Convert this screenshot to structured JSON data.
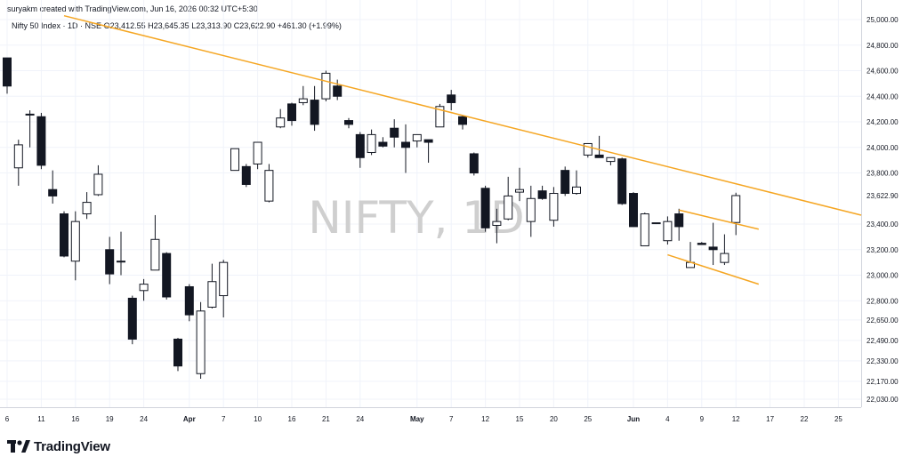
{
  "header": {
    "credit": "suryakm created with TradingView.com, Jun 16, 2026 00:32 UTC+5:30",
    "symbol_line": "Nifty 50 Index · 1D · NSE",
    "open": "O23,412.55",
    "high": "H23,645.35",
    "low": "L23,313.90",
    "close": "C23,622.90",
    "change": "+461.30 (+1.99%)"
  },
  "watermark": "NIFTY, 1D",
  "brand": {
    "name": "TradingView",
    "icon": "tradingview-logo-icon"
  },
  "colors": {
    "up_fill": "#ffffff",
    "down_fill": "#131722",
    "wick": "#131722",
    "trendline": "#f5a623",
    "grid": "#f0f3fa",
    "axis_text": "#131722"
  },
  "chart_data": {
    "type": "candlestick",
    "title": "",
    "xlabel": "",
    "ylabel": "",
    "ylim": [
      21950,
      25050
    ],
    "y_tick_labels": [
      "25,000.00",
      "24,800.00",
      "24,600.00",
      "24,400.00",
      "24,200.00",
      "24,000.00",
      "23,800.00",
      "23,622.90",
      "23,400.00",
      "23,200.00",
      "23,000.00",
      "22,800.00",
      "22,650.00",
      "22,490.00",
      "22,330.00",
      "22,170.00",
      "22,030.00"
    ],
    "x_tick_labels": [
      {
        "label": "6",
        "slot": 0
      },
      {
        "label": "11",
        "slot": 3
      },
      {
        "label": "16",
        "slot": 6
      },
      {
        "label": "19",
        "slot": 9
      },
      {
        "label": "24",
        "slot": 12
      },
      {
        "label": "Apr",
        "slot": 16,
        "bold": true
      },
      {
        "label": "7",
        "slot": 19
      },
      {
        "label": "10",
        "slot": 22
      },
      {
        "label": "16",
        "slot": 25
      },
      {
        "label": "21",
        "slot": 28
      },
      {
        "label": "24",
        "slot": 31
      },
      {
        "label": "May",
        "slot": 36,
        "bold": true
      },
      {
        "label": "7",
        "slot": 39
      },
      {
        "label": "12",
        "slot": 42
      },
      {
        "label": "15",
        "slot": 45
      },
      {
        "label": "20",
        "slot": 48
      },
      {
        "label": "25",
        "slot": 51
      },
      {
        "label": "Jun",
        "slot": 55,
        "bold": true
      },
      {
        "label": "4",
        "slot": 58
      },
      {
        "label": "9",
        "slot": 61
      },
      {
        "label": "12",
        "slot": 64
      },
      {
        "label": "17",
        "slot": 67
      },
      {
        "label": "22",
        "slot": 70
      },
      {
        "label": "25",
        "slot": 73
      }
    ],
    "last_price": 23622.9,
    "candles": [
      {
        "s": 0,
        "o": 24700,
        "h": 24700,
        "l": 24420,
        "c": 24480
      },
      {
        "s": 1,
        "o": 23840,
        "h": 24060,
        "l": 23700,
        "c": 24020
      },
      {
        "s": 2,
        "o": 24260,
        "h": 24290,
        "l": 24000,
        "c": 24260
      },
      {
        "s": 3,
        "o": 24240,
        "h": 24270,
        "l": 23830,
        "c": 23860
      },
      {
        "s": 4,
        "o": 23670,
        "h": 23820,
        "l": 23560,
        "c": 23620
      },
      {
        "s": 5,
        "o": 23480,
        "h": 23500,
        "l": 23140,
        "c": 23150
      },
      {
        "s": 6,
        "o": 23110,
        "h": 23500,
        "l": 22960,
        "c": 23420
      },
      {
        "s": 7,
        "o": 23480,
        "h": 23650,
        "l": 23440,
        "c": 23570
      },
      {
        "s": 8,
        "o": 23630,
        "h": 23860,
        "l": 23620,
        "c": 23790
      },
      {
        "s": 9,
        "o": 23200,
        "h": 23300,
        "l": 22930,
        "c": 23010
      },
      {
        "s": 10,
        "o": 23110,
        "h": 23340,
        "l": 23000,
        "c": 23110
      },
      {
        "s": 11,
        "o": 22820,
        "h": 22840,
        "l": 22460,
        "c": 22500
      },
      {
        "s": 12,
        "o": 22880,
        "h": 22970,
        "l": 22800,
        "c": 22930
      },
      {
        "s": 13,
        "o": 23040,
        "h": 23470,
        "l": 23040,
        "c": 23280
      },
      {
        "s": 14,
        "o": 23170,
        "h": 23180,
        "l": 22810,
        "c": 22830
      },
      {
        "s": 15,
        "o": 22500,
        "h": 22510,
        "l": 22250,
        "c": 22290
      },
      {
        "s": 16,
        "o": 22910,
        "h": 22930,
        "l": 22640,
        "c": 22690
      },
      {
        "s": 17,
        "o": 22230,
        "h": 22790,
        "l": 22190,
        "c": 22720
      },
      {
        "s": 18,
        "o": 22750,
        "h": 23090,
        "l": 22740,
        "c": 22950
      },
      {
        "s": 19,
        "o": 22840,
        "h": 23120,
        "l": 22670,
        "c": 23100
      },
      {
        "s": 20,
        "o": 23820,
        "h": 23990,
        "l": 23820,
        "c": 23990
      },
      {
        "s": 21,
        "o": 23850,
        "h": 23870,
        "l": 23690,
        "c": 23710
      },
      {
        "s": 22,
        "o": 23870,
        "h": 24040,
        "l": 23830,
        "c": 24040
      },
      {
        "s": 23,
        "o": 23580,
        "h": 23870,
        "l": 23570,
        "c": 23820
      },
      {
        "s": 24,
        "o": 24160,
        "h": 24300,
        "l": 24150,
        "c": 24230
      },
      {
        "s": 25,
        "o": 24340,
        "h": 24350,
        "l": 24170,
        "c": 24210
      },
      {
        "s": 26,
        "o": 24350,
        "h": 24480,
        "l": 24330,
        "c": 24380
      },
      {
        "s": 27,
        "o": 24370,
        "h": 24480,
        "l": 24130,
        "c": 24180
      },
      {
        "s": 28,
        "o": 24380,
        "h": 24600,
        "l": 24360,
        "c": 24580
      },
      {
        "s": 29,
        "o": 24480,
        "h": 24530,
        "l": 24370,
        "c": 24400
      },
      {
        "s": 30,
        "o": 24210,
        "h": 24230,
        "l": 24150,
        "c": 24180
      },
      {
        "s": 31,
        "o": 24100,
        "h": 24120,
        "l": 23840,
        "c": 23920
      },
      {
        "s": 32,
        "o": 23960,
        "h": 24140,
        "l": 23940,
        "c": 24100
      },
      {
        "s": 33,
        "o": 24040,
        "h": 24080,
        "l": 24000,
        "c": 24010
      },
      {
        "s": 34,
        "o": 24150,
        "h": 24220,
        "l": 24000,
        "c": 24080
      },
      {
        "s": 35,
        "o": 24040,
        "h": 24180,
        "l": 23800,
        "c": 24000
      },
      {
        "s": 36,
        "o": 24050,
        "h": 24080,
        "l": 24000,
        "c": 24100
      },
      {
        "s": 37,
        "o": 24060,
        "h": 24060,
        "l": 23880,
        "c": 24040
      },
      {
        "s": 38,
        "o": 24160,
        "h": 24340,
        "l": 24160,
        "c": 24320
      },
      {
        "s": 39,
        "o": 24410,
        "h": 24450,
        "l": 24290,
        "c": 24350
      },
      {
        "s": 40,
        "o": 24240,
        "h": 24250,
        "l": 24140,
        "c": 24180
      },
      {
        "s": 41,
        "o": 23950,
        "h": 23960,
        "l": 23780,
        "c": 23800
      },
      {
        "s": 42,
        "o": 23680,
        "h": 23700,
        "l": 23340,
        "c": 23370
      },
      {
        "s": 43,
        "o": 23390,
        "h": 23520,
        "l": 23250,
        "c": 23420
      },
      {
        "s": 44,
        "o": 23440,
        "h": 23770,
        "l": 23430,
        "c": 23620
      },
      {
        "s": 45,
        "o": 23650,
        "h": 23840,
        "l": 23580,
        "c": 23670
      },
      {
        "s": 46,
        "o": 23420,
        "h": 23700,
        "l": 23300,
        "c": 23600
      },
      {
        "s": 47,
        "o": 23660,
        "h": 23700,
        "l": 23590,
        "c": 23600
      },
      {
        "s": 48,
        "o": 23430,
        "h": 23690,
        "l": 23380,
        "c": 23640
      },
      {
        "s": 49,
        "o": 23820,
        "h": 23850,
        "l": 23620,
        "c": 23640
      },
      {
        "s": 50,
        "o": 23640,
        "h": 23820,
        "l": 23630,
        "c": 23690
      },
      {
        "s": 51,
        "o": 23940,
        "h": 24030,
        "l": 23920,
        "c": 24030
      },
      {
        "s": 52,
        "o": 23940,
        "h": 24090,
        "l": 23920,
        "c": 23920
      },
      {
        "s": 53,
        "o": 23890,
        "h": 23920,
        "l": 23860,
        "c": 23920
      },
      {
        "s": 54,
        "o": 23910,
        "h": 23920,
        "l": 23550,
        "c": 23560
      },
      {
        "s": 55,
        "o": 23640,
        "h": 23650,
        "l": 23380,
        "c": 23380
      },
      {
        "s": 56,
        "o": 23230,
        "h": 23490,
        "l": 23230,
        "c": 23480
      },
      {
        "s": 57,
        "o": 23410,
        "h": 23410,
        "l": 23400,
        "c": 23410
      },
      {
        "s": 58,
        "o": 23270,
        "h": 23460,
        "l": 23240,
        "c": 23420
      },
      {
        "s": 59,
        "o": 23480,
        "h": 23520,
        "l": 23270,
        "c": 23380
      },
      {
        "s": 60,
        "o": 23060,
        "h": 23260,
        "l": 23060,
        "c": 23100
      },
      {
        "s": 61,
        "o": 23250,
        "h": 23260,
        "l": 23240,
        "c": 23240
      },
      {
        "s": 62,
        "o": 23220,
        "h": 23410,
        "l": 23080,
        "c": 23200
      },
      {
        "s": 63,
        "o": 23100,
        "h": 23320,
        "l": 23080,
        "c": 23170
      },
      {
        "s": 64,
        "o": 23412.55,
        "h": 23645.35,
        "l": 23313.9,
        "c": 23622.9
      }
    ],
    "trendlines": [
      {
        "name": "",
        "from": {
          "s": 5,
          "p": 25030
        },
        "to": {
          "s": 75,
          "p": 23470
        }
      },
      {
        "name": "",
        "from": {
          "s": 59,
          "p": 23510
        },
        "to": {
          "s": 66,
          "p": 23360
        }
      },
      {
        "name": "",
        "from": {
          "s": 58,
          "p": 23160
        },
        "to": {
          "s": 66,
          "p": 22930
        }
      }
    ]
  }
}
